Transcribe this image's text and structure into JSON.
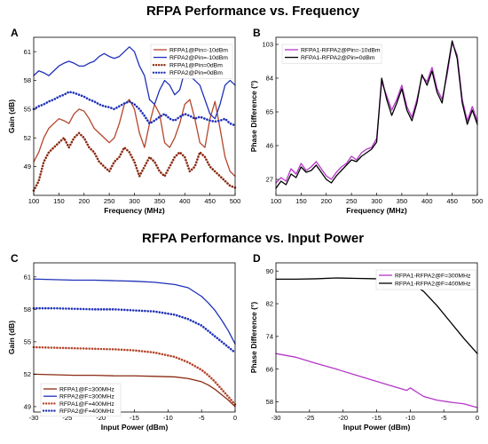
{
  "section_titles": {
    "top": "RFPA Performance vs. Frequency",
    "bottom": "RFPA Performance vs. Input Power"
  },
  "panel_letters": [
    "A",
    "B",
    "C",
    "D"
  ],
  "chart_data": [
    {
      "panel": "A",
      "type": "line",
      "xlabel": "Frequency (MHz)",
      "ylabel": "Gain (dB)",
      "xlim": [
        100,
        500
      ],
      "ylim": [
        46,
        62.5
      ],
      "xticks": [
        100,
        150,
        200,
        250,
        300,
        350,
        400,
        450,
        500
      ],
      "yticks": [
        49,
        52,
        55,
        58,
        61
      ],
      "grid": false,
      "legend_position": "top-right",
      "series": [
        {
          "name": "RFPA1@Pin=-10dBm",
          "color": "#b5452a",
          "style": "solid",
          "x": [
            100,
            110,
            120,
            130,
            140,
            150,
            160,
            170,
            180,
            190,
            200,
            210,
            220,
            230,
            240,
            250,
            260,
            270,
            280,
            290,
            300,
            310,
            320,
            330,
            340,
            350,
            360,
            370,
            380,
            390,
            400,
            410,
            420,
            430,
            440,
            450,
            460,
            470,
            480,
            490,
            500
          ],
          "y": [
            49.5,
            50.5,
            52.0,
            53.0,
            53.5,
            54.0,
            53.8,
            53.5,
            54.5,
            55.0,
            54.8,
            54.0,
            53.0,
            52.5,
            52.0,
            51.5,
            52.0,
            53.5,
            55.5,
            56.0,
            55.0,
            52.5,
            51.0,
            53.5,
            55.5,
            54.5,
            51.5,
            51.0,
            52.0,
            53.5,
            55.5,
            56.0,
            54.0,
            51.5,
            51.0,
            54.0,
            55.8,
            53.0,
            50.0,
            48.5,
            48.0
          ]
        },
        {
          "name": "RFPA2@Pin=-10dBm",
          "color": "#1f31b8",
          "style": "solid",
          "x": [
            100,
            110,
            120,
            130,
            140,
            150,
            160,
            170,
            180,
            190,
            200,
            210,
            220,
            230,
            240,
            250,
            260,
            270,
            280,
            290,
            300,
            310,
            320,
            330,
            340,
            350,
            360,
            370,
            380,
            390,
            400,
            410,
            420,
            430,
            440,
            450,
            460,
            470,
            480,
            490,
            500
          ],
          "y": [
            58.5,
            59.0,
            58.8,
            58.5,
            59.0,
            59.5,
            59.8,
            60.0,
            59.8,
            59.5,
            59.5,
            59.8,
            60.0,
            60.5,
            60.8,
            60.5,
            60.3,
            60.5,
            61.0,
            61.5,
            61.0,
            59.5,
            58.5,
            56.0,
            55.5,
            57.0,
            58.0,
            57.5,
            56.5,
            57.0,
            59.0,
            58.5,
            58.0,
            57.5,
            56.0,
            54.5,
            54.0,
            55.5,
            57.5,
            58.0,
            57.5
          ]
        },
        {
          "name": "RFPA1@Pin=0dBm",
          "color": "#8b2a12",
          "style": "dotted",
          "x": [
            100,
            110,
            120,
            130,
            140,
            150,
            160,
            170,
            180,
            190,
            200,
            210,
            220,
            230,
            240,
            250,
            260,
            270,
            280,
            290,
            300,
            310,
            320,
            330,
            340,
            350,
            360,
            370,
            380,
            390,
            400,
            410,
            420,
            430,
            440,
            450,
            460,
            470,
            480,
            490,
            500
          ],
          "y": [
            46.5,
            47.5,
            49.5,
            50.5,
            51.0,
            51.5,
            52.0,
            51.0,
            52.0,
            52.5,
            52.0,
            51.0,
            50.5,
            49.5,
            49.0,
            48.5,
            49.5,
            50.0,
            51.0,
            50.5,
            49.5,
            48.0,
            49.0,
            50.0,
            49.5,
            48.5,
            48.0,
            49.0,
            50.0,
            50.5,
            50.0,
            48.5,
            49.0,
            50.5,
            50.0,
            49.0,
            48.5,
            48.0,
            47.5,
            47.0,
            46.8
          ]
        },
        {
          "name": "RFPA2@Pin=0dBm",
          "color": "#1f31b8",
          "style": "dotted",
          "x": [
            100,
            110,
            120,
            130,
            140,
            150,
            160,
            170,
            180,
            190,
            200,
            210,
            220,
            230,
            240,
            250,
            260,
            270,
            280,
            290,
            300,
            310,
            320,
            330,
            340,
            350,
            360,
            370,
            380,
            390,
            400,
            410,
            420,
            430,
            440,
            450,
            460,
            470,
            480,
            490,
            500
          ],
          "y": [
            55.0,
            55.3,
            55.5,
            55.8,
            56.0,
            56.3,
            56.5,
            56.8,
            56.7,
            56.5,
            56.3,
            56.0,
            55.8,
            55.5,
            55.3,
            55.2,
            55.0,
            55.3,
            55.6,
            55.8,
            55.5,
            55.0,
            54.3,
            53.5,
            53.8,
            54.2,
            54.5,
            54.0,
            53.8,
            54.2,
            54.5,
            54.3,
            54.0,
            54.2,
            54.0,
            53.8,
            53.7,
            53.8,
            54.0,
            53.5,
            53.3
          ]
        }
      ]
    },
    {
      "panel": "B",
      "type": "line",
      "xlabel": "Frequency (MHz)",
      "ylabel": "Phase Difference (°)",
      "xlim": [
        100,
        500
      ],
      "ylim": [
        18,
        107
      ],
      "xticks": [
        100,
        150,
        200,
        250,
        300,
        350,
        400,
        450,
        500
      ],
      "yticks": [
        27,
        46,
        65,
        84,
        103
      ],
      "grid": false,
      "legend_position": "top-left",
      "series": [
        {
          "name": "RFPA1-RFPA2@Pin=-10dBm",
          "color": "#b536c8",
          "style": "solid",
          "x": [
            100,
            110,
            120,
            130,
            140,
            150,
            160,
            170,
            180,
            190,
            200,
            210,
            220,
            230,
            240,
            250,
            260,
            270,
            280,
            290,
            300,
            310,
            320,
            330,
            340,
            350,
            360,
            370,
            380,
            390,
            400,
            410,
            420,
            430,
            440,
            450,
            460,
            470,
            480,
            490,
            500
          ],
          "y": [
            25,
            28,
            26,
            33,
            30,
            36,
            32,
            34,
            37,
            33,
            29,
            27,
            31,
            34,
            36,
            40,
            38,
            42,
            44,
            45,
            50,
            82,
            74,
            66,
            72,
            80,
            68,
            62,
            72,
            85,
            82,
            90,
            78,
            72,
            86,
            104,
            97,
            72,
            60,
            68,
            60
          ]
        },
        {
          "name": "RFPA1-RFPA2@Pin=0dBm",
          "color": "#000000",
          "style": "solid",
          "x": [
            100,
            110,
            120,
            130,
            140,
            150,
            160,
            170,
            180,
            190,
            200,
            210,
            220,
            230,
            240,
            250,
            260,
            270,
            280,
            290,
            300,
            310,
            320,
            330,
            340,
            350,
            360,
            370,
            380,
            390,
            400,
            410,
            420,
            430,
            440,
            450,
            460,
            470,
            480,
            490,
            500
          ],
          "y": [
            22,
            26,
            24,
            30,
            28,
            34,
            31,
            32,
            35,
            31,
            27,
            25,
            29,
            32,
            35,
            38,
            37,
            40,
            42,
            44,
            48,
            84,
            72,
            63,
            70,
            78,
            66,
            60,
            70,
            86,
            80,
            88,
            76,
            70,
            88,
            105,
            95,
            70,
            58,
            66,
            58
          ]
        }
      ]
    },
    {
      "panel": "C",
      "type": "line",
      "xlabel": "Input Power (dBm)",
      "ylabel": "Gain (dB)",
      "xlim": [
        -30,
        0
      ],
      "ylim": [
        48.5,
        62.3
      ],
      "xticks": [
        -30,
        -25,
        -20,
        -15,
        -10,
        -5,
        0
      ],
      "yticks": [
        49,
        52,
        55,
        58,
        61
      ],
      "grid": false,
      "legend_position": "bottom-left",
      "series": [
        {
          "name": "RFPA1@F=300MHz",
          "color": "#8b2a12",
          "style": "solid",
          "x": [
            -30,
            -27,
            -24,
            -21,
            -18,
            -15,
            -12,
            -9,
            -7,
            -5,
            -4,
            -3,
            -2,
            -1,
            0
          ],
          "y": [
            52.0,
            51.95,
            51.9,
            51.9,
            51.85,
            51.85,
            51.8,
            51.75,
            51.6,
            51.3,
            51.0,
            50.6,
            50.1,
            49.6,
            49.0
          ]
        },
        {
          "name": "RFPA2@F=300MHz",
          "color": "#1f31b8",
          "style": "solid",
          "x": [
            -30,
            -27,
            -24,
            -21,
            -18,
            -15,
            -12,
            -9,
            -7,
            -5,
            -4,
            -3,
            -2,
            -1,
            0
          ],
          "y": [
            60.8,
            60.75,
            60.7,
            60.7,
            60.65,
            60.6,
            60.5,
            60.3,
            60.0,
            59.2,
            58.6,
            57.9,
            57.0,
            56.0,
            54.8
          ]
        },
        {
          "name": "RFPA1@F=400MHz",
          "color": "#b5452a",
          "style": "dotted",
          "x": [
            -30,
            -27,
            -24,
            -21,
            -18,
            -15,
            -12,
            -9,
            -7,
            -5,
            -4,
            -3,
            -2,
            -1,
            0
          ],
          "y": [
            54.5,
            54.45,
            54.4,
            54.35,
            54.3,
            54.2,
            54.0,
            53.6,
            53.1,
            52.4,
            51.9,
            51.3,
            50.6,
            49.9,
            49.2
          ]
        },
        {
          "name": "RFPA2@F=400MHz",
          "color": "#1f31b8",
          "style": "dotted",
          "x": [
            -30,
            -27,
            -24,
            -21,
            -18,
            -15,
            -12,
            -9,
            -7,
            -5,
            -4,
            -3,
            -2,
            -1,
            0
          ],
          "y": [
            58.1,
            58.1,
            58.05,
            58.0,
            58.0,
            57.9,
            57.8,
            57.5,
            57.1,
            56.5,
            56.0,
            55.5,
            55.0,
            54.5,
            54.0
          ]
        }
      ]
    },
    {
      "panel": "D",
      "type": "line",
      "xlabel": "Input Power (dBm)",
      "ylabel": "Phase Difference (°)",
      "xlim": [
        -30,
        0
      ],
      "ylim": [
        55.5,
        92
      ],
      "xticks": [
        -30,
        -25,
        -20,
        -15,
        -10,
        -5,
        0
      ],
      "yticks": [
        58,
        66,
        74,
        82,
        90
      ],
      "grid": false,
      "legend_position": "top-right",
      "series": [
        {
          "name": "RFPA1-RFPA2@F=300MHz",
          "color": "#b536c8",
          "style": "solid",
          "x": [
            -30,
            -27,
            -24,
            -21,
            -18,
            -15,
            -12,
            -10.5,
            -10,
            -8,
            -6,
            -4,
            -2,
            0
          ],
          "y": [
            69.8,
            68.9,
            67.4,
            66.0,
            64.5,
            63.0,
            61.5,
            60.8,
            61.4,
            59.3,
            58.4,
            57.9,
            57.5,
            56.6
          ]
        },
        {
          "name": "RFPA1-RFPA2@F=400MHz",
          "color": "#000000",
          "style": "solid",
          "x": [
            -30,
            -27,
            -24,
            -21,
            -18,
            -15,
            -12,
            -10,
            -8,
            -6,
            -4,
            -2,
            0
          ],
          "y": [
            88.0,
            88.0,
            88.1,
            88.3,
            88.2,
            88.1,
            87.8,
            87.2,
            85.0,
            81.5,
            77.5,
            73.5,
            69.8
          ]
        }
      ]
    }
  ]
}
